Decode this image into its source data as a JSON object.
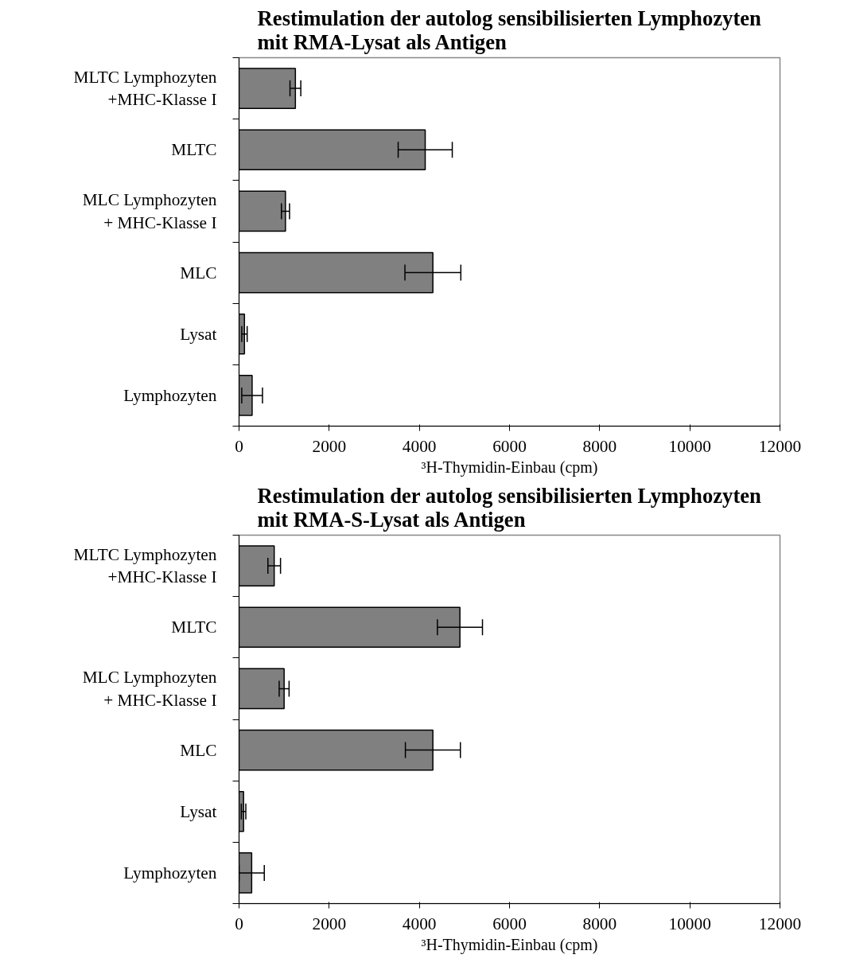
{
  "chart_data": [
    {
      "type": "bar",
      "orientation": "horizontal",
      "title": "Restimulation der autolog sensibilisierten Lymphozyten\nmit RMA-Lysat als Antigen",
      "xlabel": "³H-Thymidin-Einbau (cpm)",
      "categories": [
        "MLTC Lymphozyten\n+MHC-Klasse I",
        "MLTC",
        "MLC Lymphozyten\n+ MHC-Klasse I",
        "MLC",
        "Lysat",
        "Lymphozyten"
      ],
      "values": [
        1250,
        4130,
        1030,
        4300,
        120,
        290
      ],
      "errors": [
        120,
        600,
        90,
        620,
        60,
        230
      ],
      "color": "#808080",
      "xlim": [
        0,
        12000
      ],
      "xticks": [
        0,
        2000,
        4000,
        6000,
        8000,
        10000,
        12000
      ],
      "grid": false
    },
    {
      "type": "bar",
      "orientation": "horizontal",
      "title": "Restimulation der autolog sensibilisierten Lymphozyten\nmit RMA-S-Lysat als Antigen",
      "xlabel": "³H-Thymidin-Einbau (cpm)",
      "categories": [
        "MLTC Lymphozyten\n+MHC-Klasse I",
        "MLTC",
        "MLC Lymphozyten\n+ MHC-Klasse I",
        "MLC",
        "Lysat",
        "Lymphozyten"
      ],
      "values": [
        780,
        4900,
        1000,
        4300,
        100,
        280
      ],
      "errors": [
        140,
        500,
        110,
        610,
        50,
        280
      ],
      "color": "#808080",
      "xlim": [
        0,
        12000
      ],
      "xticks": [
        0,
        2000,
        4000,
        6000,
        8000,
        10000,
        12000
      ],
      "grid": false
    }
  ]
}
